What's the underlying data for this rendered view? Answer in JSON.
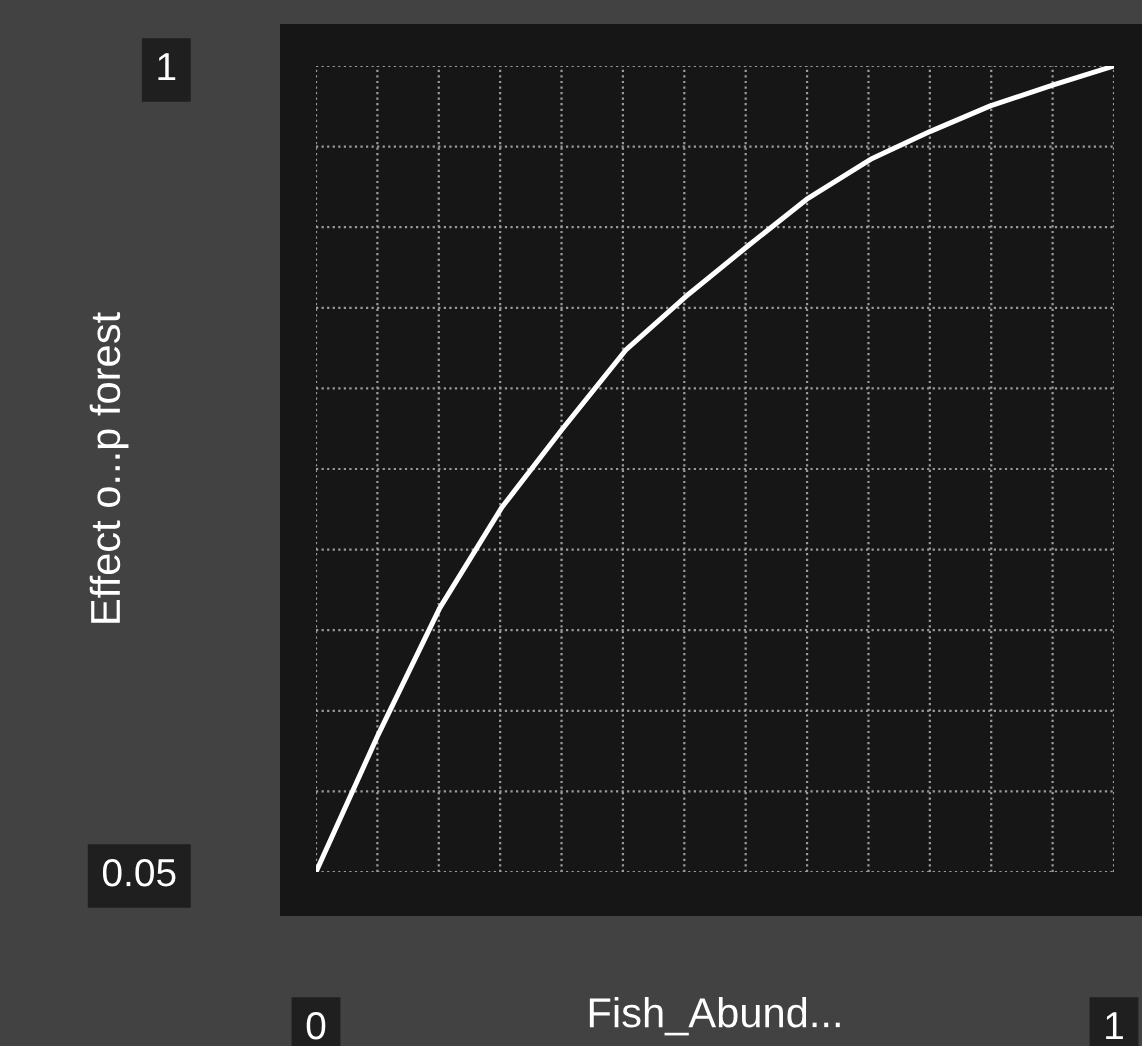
{
  "chart_data": {
    "type": "line",
    "xlabel": "Fish_Abund...",
    "ylabel": "Effect o...p forest",
    "x": [
      0,
      0.078,
      0.155,
      0.233,
      0.307,
      0.388,
      0.463,
      0.54,
      0.615,
      0.695,
      0.77,
      0.845,
      0.925,
      1
    ],
    "series": [
      {
        "color": "#ffffff",
        "values": [
          0.05,
          0.212,
          0.361,
          0.48,
          0.57,
          0.665,
          0.728,
          0.787,
          0.843,
          0.89,
          0.923,
          0.953,
          0.978,
          1
        ]
      }
    ],
    "xlim": [
      0,
      1
    ],
    "ylim": [
      0.05,
      1
    ],
    "xticks": [
      0,
      1
    ],
    "yticks": [
      0.05,
      1
    ],
    "grid": true,
    "marker": "none",
    "line_style": "solid"
  }
}
